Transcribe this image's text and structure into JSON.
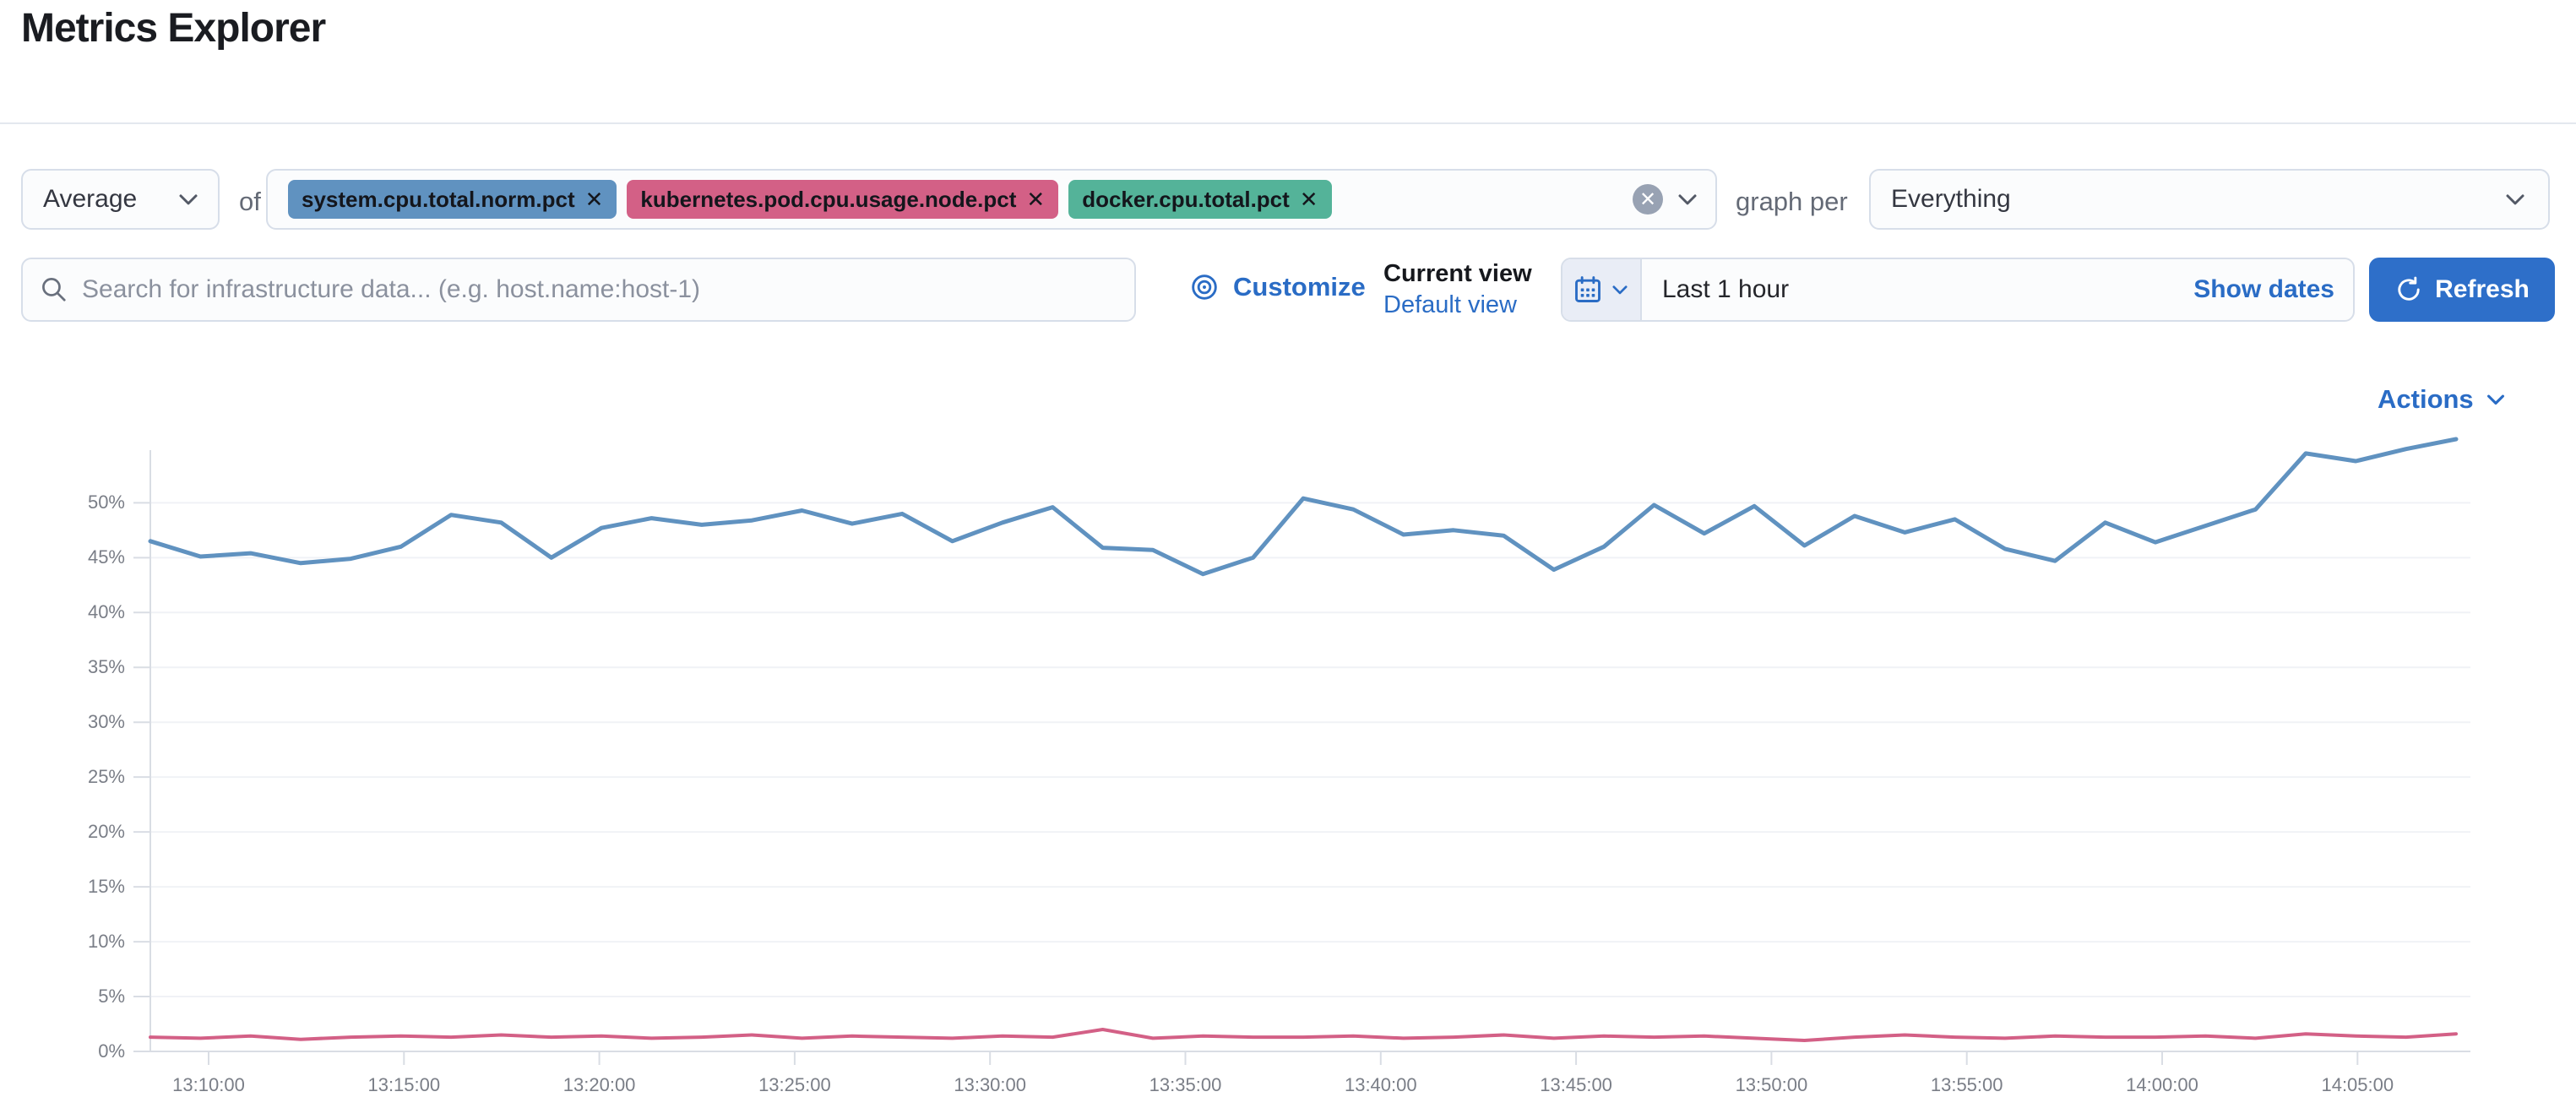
{
  "page": {
    "title": "Metrics Explorer"
  },
  "toolbar": {
    "aggregation": {
      "value": "Average"
    },
    "of_label": "of",
    "metrics": [
      {
        "label": "system.cpu.total.norm.pct",
        "color": "#6092C0"
      },
      {
        "label": "kubernetes.pod.cpu.usage.node.pct",
        "color": "#D36086"
      },
      {
        "label": "docker.cpu.total.pct",
        "color": "#54B399"
      }
    ],
    "remove_glyph": "✕",
    "clear_glyph": "✕",
    "graph_per_label": "graph per",
    "group_by": {
      "value": "Everything"
    }
  },
  "search": {
    "placeholder": "Search for infrastructure data... (e.g. host.name:host-1)"
  },
  "view_controls": {
    "customize_label": "Customize",
    "current_view_label": "Current view",
    "view_name": "Default view"
  },
  "time_picker": {
    "value": "Last 1 hour",
    "show_dates_label": "Show dates",
    "refresh_label": "Refresh"
  },
  "actions": {
    "label": "Actions"
  },
  "chart_data": {
    "type": "line",
    "title": "",
    "xlabel": "",
    "ylabel": "",
    "grid": true,
    "legend": "none",
    "ylim": [
      0,
      54.8
    ],
    "y_ticks": [
      {
        "value": 0,
        "label": "0%"
      },
      {
        "value": 5,
        "label": "5%"
      },
      {
        "value": 10,
        "label": "10%"
      },
      {
        "value": 15,
        "label": "15%"
      },
      {
        "value": 20,
        "label": "20%"
      },
      {
        "value": 25,
        "label": "25%"
      },
      {
        "value": 30,
        "label": "30%"
      },
      {
        "value": 35,
        "label": "35%"
      },
      {
        "value": 40,
        "label": "40%"
      },
      {
        "value": 45,
        "label": "45%"
      },
      {
        "value": 50,
        "label": "50%"
      }
    ],
    "x_tick_labels": [
      "13:10:00",
      "13:15:00",
      "13:20:00",
      "13:25:00",
      "13:30:00",
      "13:35:00",
      "13:40:00",
      "13:45:00",
      "13:50:00",
      "13:55:00",
      "14:00:00",
      "14:05:00"
    ],
    "x_range": [
      "13:08:30",
      "14:07:00"
    ],
    "series": [
      {
        "name": "system.cpu.total.norm.pct",
        "color": "#6092C0",
        "stroke_width": 5,
        "values": [
          46.5,
          45.1,
          45.4,
          44.5,
          44.9,
          46.0,
          48.9,
          48.2,
          45.0,
          47.7,
          48.6,
          48.0,
          48.4,
          49.3,
          48.1,
          49.0,
          46.5,
          48.2,
          49.6,
          45.9,
          45.7,
          43.5,
          45.0,
          50.4,
          49.4,
          47.1,
          47.5,
          47.0,
          43.9,
          46.0,
          49.8,
          47.2,
          49.7,
          46.1,
          48.8,
          47.3,
          48.5,
          45.8,
          44.7,
          48.2,
          46.4,
          47.9,
          49.4,
          54.5,
          53.8,
          54.9,
          55.8
        ]
      },
      {
        "name": "kubernetes.pod.cpu.usage.node.pct",
        "color": "#D36086",
        "stroke_width": 4,
        "values": [
          1.3,
          1.2,
          1.4,
          1.1,
          1.3,
          1.4,
          1.3,
          1.5,
          1.3,
          1.4,
          1.2,
          1.3,
          1.5,
          1.2,
          1.4,
          1.3,
          1.2,
          1.4,
          1.3,
          2.0,
          1.2,
          1.4,
          1.3,
          1.3,
          1.4,
          1.2,
          1.3,
          1.5,
          1.2,
          1.4,
          1.3,
          1.4,
          1.2,
          1.0,
          1.3,
          1.5,
          1.3,
          1.2,
          1.4,
          1.3,
          1.3,
          1.4,
          1.2,
          1.6,
          1.4,
          1.3,
          1.6
        ]
      }
    ]
  }
}
